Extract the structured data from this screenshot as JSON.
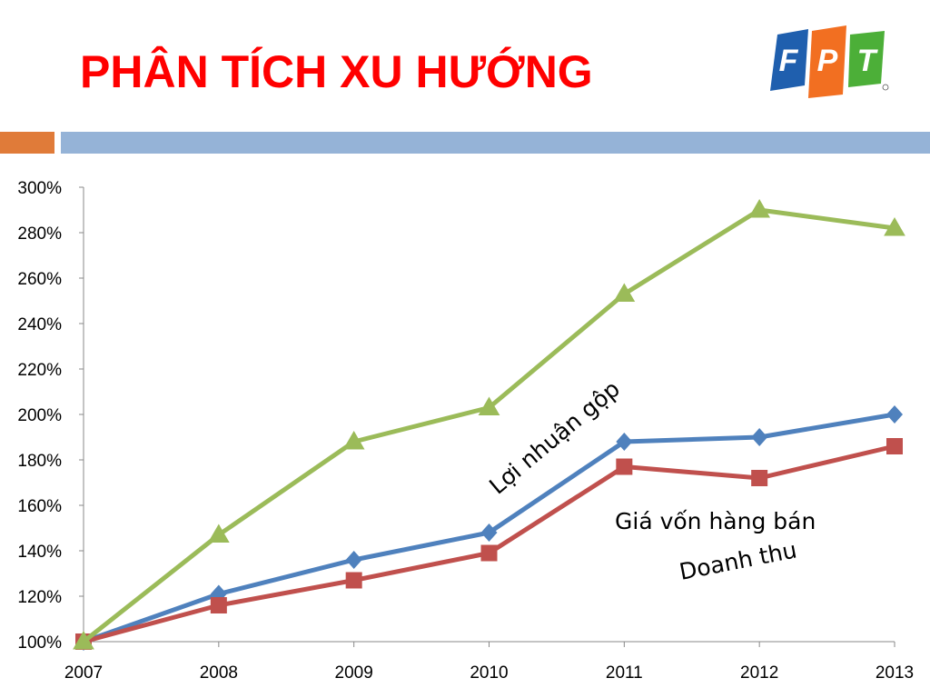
{
  "slide": {
    "title": "PHÂN TÍCH XU HƯỚNG"
  },
  "logo": {
    "letters": [
      "F",
      "P",
      "T"
    ],
    "colors": [
      "#1f5fae",
      "#f26f21",
      "#4caf38"
    ]
  },
  "chart_data": {
    "type": "line",
    "x": [
      "2007",
      "2008",
      "2009",
      "2010",
      "2011",
      "2012",
      "2013"
    ],
    "yticks": [
      "100%",
      "120%",
      "140%",
      "160%",
      "180%",
      "200%",
      "220%",
      "240%",
      "260%",
      "280%",
      "300%"
    ],
    "ylim": [
      100,
      300
    ],
    "series": [
      {
        "name": "Lợi nhuận gộp",
        "color": "#9bbb59",
        "marker": "triangle",
        "values": [
          100,
          147,
          188,
          203,
          253,
          290,
          282
        ]
      },
      {
        "name": "Doanh thu",
        "color": "#4f81bd",
        "marker": "diamond",
        "values": [
          100,
          121,
          136,
          148,
          188,
          190,
          200
        ]
      },
      {
        "name": "Giá vốn hàng bán",
        "color": "#c0504d",
        "marker": "square",
        "values": [
          100,
          116,
          127,
          139,
          177,
          172,
          186
        ]
      }
    ],
    "grid": false
  }
}
